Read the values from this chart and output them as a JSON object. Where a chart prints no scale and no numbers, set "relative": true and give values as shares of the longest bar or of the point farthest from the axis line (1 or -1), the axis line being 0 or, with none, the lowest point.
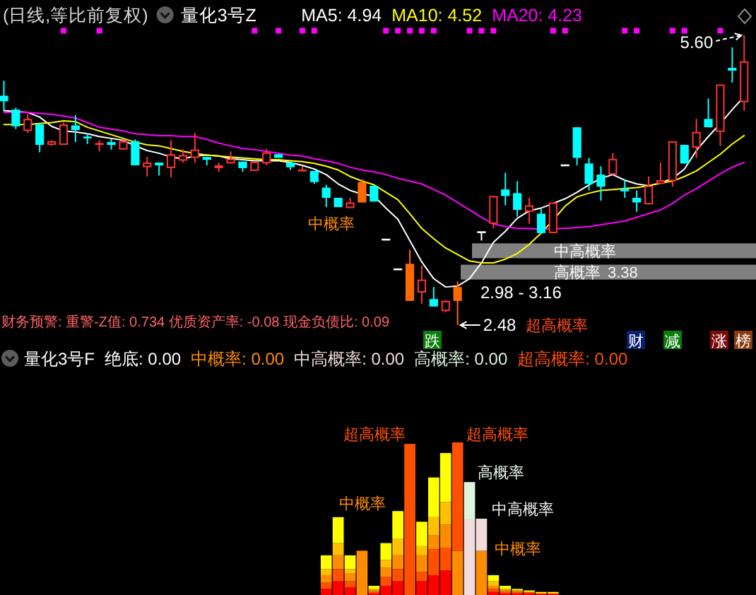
{
  "chart_data": [
    {
      "type": "candlestick",
      "title": "(日线,等比前复权)",
      "subtitle": "量化3号Z",
      "categories": [
        null,
        null,
        null,
        null,
        null,
        null,
        null,
        null,
        null,
        null,
        null,
        null,
        null,
        null,
        null,
        null,
        null,
        null,
        null,
        null,
        null,
        null,
        null,
        null,
        null,
        null,
        null,
        null,
        null,
        null,
        null,
        null,
        null,
        null,
        null,
        null,
        null,
        null,
        null,
        null,
        null,
        null,
        null,
        null,
        null,
        null,
        null,
        null,
        null,
        null,
        null,
        null,
        null,
        null,
        null,
        null,
        null,
        null,
        null,
        null,
        null,
        null,
        null
      ],
      "ohlc": [
        [
          4.95,
          5.11,
          4.79,
          4.89
        ],
        [
          4.8,
          4.82,
          4.59,
          4.62
        ],
        [
          4.57,
          4.75,
          4.55,
          4.7
        ],
        [
          4.64,
          4.66,
          4.34,
          4.42
        ],
        [
          4.42,
          4.47,
          4.41,
          4.46
        ],
        [
          4.42,
          4.66,
          4.42,
          4.64
        ],
        [
          4.63,
          4.74,
          4.45,
          4.58
        ],
        [
          4.51,
          4.55,
          4.43,
          4.49
        ],
        [
          4.42,
          4.47,
          4.35,
          4.44
        ],
        [
          4.45,
          4.48,
          4.37,
          4.42
        ],
        [
          4.37,
          4.48,
          4.37,
          4.46
        ],
        [
          4.46,
          4.48,
          4.2,
          4.2
        ],
        [
          4.18,
          4.29,
          4.08,
          4.23
        ],
        [
          4.23,
          4.23,
          4.09,
          4.2
        ],
        [
          4.17,
          4.47,
          4.07,
          4.32
        ],
        [
          4.25,
          4.37,
          4.23,
          4.31
        ],
        [
          4.28,
          4.55,
          4.23,
          4.37
        ],
        [
          4.29,
          4.29,
          4.2,
          4.26
        ],
        [
          4.17,
          4.23,
          4.13,
          4.2
        ],
        [
          4.22,
          4.35,
          4.22,
          4.27
        ],
        [
          4.24,
          4.24,
          4.13,
          4.17
        ],
        [
          4.14,
          4.24,
          4.14,
          4.24
        ],
        [
          4.22,
          4.38,
          4.2,
          4.34
        ],
        [
          4.32,
          4.32,
          4.28,
          4.28
        ],
        [
          4.23,
          4.23,
          4.15,
          4.18
        ],
        [
          4.14,
          4.19,
          4.14,
          4.15
        ],
        [
          4.14,
          4.14,
          4.0,
          4.02
        ],
        [
          3.96,
          3.99,
          3.75,
          3.85
        ],
        [
          3.85,
          3.85,
          3.75,
          3.75
        ],
        [
          3.74,
          3.85,
          3.74,
          3.8
        ],
        [
          4.02,
          4.05,
          3.8,
          3.8
        ],
        [
          3.98,
          3.98,
          3.81,
          3.81
        ],
        [
          3.4,
          3.4,
          3.4,
          3.4
        ],
        [
          3.08,
          3.08,
          3.08,
          3.08
        ],
        [
          3.14,
          3.29,
          2.74,
          2.74
        ],
        [
          2.83,
          3.12,
          2.71,
          2.97
        ],
        [
          2.76,
          2.89,
          2.68,
          2.68
        ],
        [
          2.63,
          2.75,
          2.62,
          2.74
        ],
        [
          2.89,
          2.95,
          2.48,
          2.74
        ],
        null,
        [
          3.48,
          3.48,
          3.39,
          3.48
        ],
        [
          3.57,
          3.87,
          3.52,
          3.87
        ],
        [
          3.94,
          4.12,
          3.77,
          3.87
        ],
        [
          3.9,
          4.03,
          3.65,
          3.72
        ],
        [
          3.7,
          3.85,
          3.57,
          3.77
        ],
        [
          3.68,
          3.73,
          3.46,
          3.47
        ],
        [
          3.47,
          3.8,
          3.47,
          3.8
        ],
        [
          4.2,
          4.2,
          4.2,
          4.2
        ],
        [
          4.61,
          4.61,
          4.2,
          4.28
        ],
        [
          4.22,
          4.28,
          3.93,
          4.0
        ],
        [
          4.1,
          4.19,
          3.82,
          3.97
        ],
        [
          4.1,
          4.33,
          4.1,
          4.27
        ],
        [
          3.95,
          4.05,
          3.85,
          3.92
        ],
        [
          3.85,
          3.93,
          3.7,
          3.8
        ],
        [
          3.78,
          4.08,
          3.78,
          3.98
        ],
        [
          4.0,
          4.23,
          4.0,
          4.04
        ],
        [
          4.03,
          4.46,
          3.97,
          4.46
        ],
        [
          4.42,
          4.42,
          4.22,
          4.22
        ],
        [
          4.39,
          4.7,
          4.28,
          4.56
        ],
        [
          4.7,
          4.92,
          4.61,
          4.61
        ],
        [
          4.56,
          5.07,
          4.41,
          5.07
        ],
        [
          5.25,
          5.47,
          5.09,
          5.22
        ],
        [
          4.88,
          5.6,
          4.79,
          5.32
        ]
      ],
      "colors": [
        "#00ffff",
        "#00ffff",
        "#ff3232",
        "#00ffff",
        "#ff3232",
        "#ff3232",
        "#00ffff",
        "#00ffff",
        "#ff3232",
        "#00ffff",
        "#ff3232",
        "#00ffff",
        "#ff3232",
        "#00ffff",
        "#ff3232",
        "#ff3232",
        "#ff3232",
        "#00ffff",
        "#ff3232",
        "#ff3232",
        "#00ffff",
        "#ff3232",
        "#ff3232",
        "#00ffff",
        "#00ffff",
        "#ff3232",
        "#00ffff",
        "#00ffff",
        "#00ffff",
        "#ff3232",
        "#ff6a00",
        "#00ffff",
        "#ffffff",
        "#ffffff",
        "#ff6a00",
        "#ff3232",
        "#00ffff",
        "#ff3232",
        "#ff6a00",
        null,
        "#ffffff",
        "#ff3232",
        "#00ffff",
        "#00ffff",
        "#ff3232",
        "#00ffff",
        "#ff3232",
        "#ffffff",
        "#00ffff",
        "#00ffff",
        "#00ffff",
        "#ff3232",
        "#00ffff",
        "#00ffff",
        "#ff3232",
        "#ff3232",
        "#ff3232",
        "#00ffff",
        "#ff3232",
        "#00ffff",
        "#ff3232",
        "#00ffff",
        "#ff3232"
      ],
      "series": [
        {
          "name": "MA5: 4.94",
          "type": "line",
          "color": "#ffffff",
          "values": [
            4.79,
            4.78,
            4.77,
            4.72,
            4.62,
            4.57,
            4.56,
            4.54,
            4.51,
            4.49,
            4.47,
            4.41,
            4.36,
            4.33,
            4.29,
            4.27,
            4.3,
            4.31,
            4.3,
            4.27,
            4.26,
            4.25,
            4.25,
            4.25,
            4.23,
            4.2,
            4.16,
            4.1,
            4.0,
            3.93,
            3.89,
            3.87,
            3.74,
            3.62,
            3.39,
            3.16,
            2.98,
            2.89,
            2.9,
            2.98,
            3.15,
            3.37,
            3.49,
            3.63,
            3.71,
            3.74,
            3.79,
            3.84,
            3.91,
            3.99,
            4.06,
            4.1,
            4.04,
            4.0,
            3.98,
            4.01,
            4.06,
            4.16,
            4.36,
            4.51,
            4.65,
            4.8,
            4.94
          ]
        },
        {
          "name": "MA10: 4.52",
          "type": "line",
          "color": "#ffff00",
          "values": [
            4.64,
            4.64,
            4.64,
            4.65,
            4.66,
            4.68,
            4.67,
            4.61,
            4.57,
            4.53,
            4.49,
            4.45,
            4.42,
            4.41,
            4.38,
            4.35,
            4.33,
            4.31,
            4.3,
            4.29,
            4.28,
            4.27,
            4.26,
            4.26,
            4.25,
            4.24,
            4.22,
            4.19,
            4.15,
            4.08,
            4.03,
            3.99,
            3.91,
            3.83,
            3.68,
            3.52,
            3.41,
            3.31,
            3.24,
            3.17,
            3.15,
            3.15,
            3.19,
            3.25,
            3.35,
            3.47,
            3.61,
            3.76,
            3.86,
            3.9,
            3.93,
            3.94,
            3.95,
            3.96,
            3.98,
            4.01,
            4.03,
            4.08,
            4.14,
            4.23,
            4.32,
            4.43,
            4.52
          ]
        },
        {
          "name": "MA20: 4.23",
          "type": "line",
          "color": "#ff00ff",
          "values": [
            4.77,
            4.77,
            4.77,
            4.76,
            4.75,
            4.73,
            4.71,
            4.66,
            4.61,
            4.59,
            4.57,
            4.54,
            4.53,
            4.52,
            4.52,
            4.51,
            4.51,
            4.48,
            4.44,
            4.41,
            4.38,
            4.37,
            4.35,
            4.33,
            4.31,
            4.3,
            4.27,
            4.25,
            4.22,
            4.18,
            4.15,
            4.13,
            4.1,
            4.06,
            4.03,
            4.0,
            3.94,
            3.88,
            3.8,
            3.72,
            3.64,
            3.57,
            3.54,
            3.52,
            3.52,
            3.51,
            3.52,
            3.52,
            3.53,
            3.54,
            3.56,
            3.58,
            3.6,
            3.64,
            3.68,
            3.72,
            3.79,
            3.88,
            3.95,
            4.03,
            4.11,
            4.18,
            4.23
          ]
        },
        {
          "type": "scatter",
          "marker": "square",
          "color": "#ff00ff",
          "values": [
            null,
            null,
            null,
            null,
            null,
            5.65,
            null,
            null,
            5.65,
            null,
            null,
            null,
            null,
            null,
            null,
            null,
            null,
            null,
            null,
            null,
            null,
            5.65,
            null,
            5.65,
            null,
            5.65,
            5.65,
            null,
            null,
            null,
            null,
            null,
            5.65,
            5.65,
            5.65,
            5.65,
            5.65,
            null,
            null,
            5.65,
            5.65,
            5.65,
            null,
            null,
            null,
            null,
            5.65,
            5.65,
            null,
            null,
            null,
            null,
            5.65,
            5.65,
            null,
            null,
            5.65,
            5.65,
            null,
            null,
            5.65,
            null,
            null
          ]
        }
      ],
      "legend": "top right",
      "bands": [
        {
          "axis": "y",
          "from": 3.2,
          "to": 3.36,
          "label": "中高概率",
          "color": "#808080"
        },
        {
          "axis": "y",
          "from": 2.97,
          "to": 3.13,
          "label": "高概率",
          "color": "#808080"
        }
      ],
      "annotations": [
        "中概率",
        "超高概率",
        "2.98 - 3.16",
        "5.60",
        "2.48",
        "财务预警: 重警-Z值: 0.734 优质资产率: -0.08 现金负债比: 0.09",
        "跌",
        "财",
        "减",
        "涨",
        "榜",
        "3.38"
      ]
    },
    {
      "type": "bar",
      "title": "量化3号F",
      "stacked": true,
      "relative": true,
      "categories": [
        null,
        null,
        null,
        null,
        null,
        null,
        null,
        null,
        null,
        null,
        null,
        null,
        null,
        null,
        null,
        null,
        null,
        null,
        null,
        null,
        null,
        null,
        null,
        null,
        null,
        null,
        null,
        null,
        null,
        null,
        null,
        null,
        null,
        null,
        null,
        null,
        null,
        null,
        null,
        null,
        null,
        null,
        null,
        null,
        null,
        null,
        null,
        null,
        null,
        null,
        null,
        null,
        null,
        null,
        null,
        null,
        null,
        null,
        null,
        null,
        null,
        null,
        null
      ],
      "series": [
        {
          "color": "#ff0000",
          "values": [
            null,
            null,
            null,
            null,
            null,
            null,
            null,
            null,
            null,
            null,
            null,
            null,
            null,
            null,
            null,
            null,
            null,
            null,
            null,
            null,
            null,
            null,
            null,
            null,
            null,
            null,
            null,
            0.04,
            0.09,
            0.05,
            null,
            0.01,
            0.06,
            0.09,
            null,
            0.09,
            0.13,
            0.16,
            null,
            null,
            null,
            0.02,
            0.01,
            0.01,
            0.01,
            0.01,
            0.01,
            null,
            null,
            null,
            null,
            null,
            null,
            null,
            null,
            null,
            null,
            null,
            null,
            null,
            null,
            null,
            null
          ]
        },
        {
          "color": "#ff5000",
          "values": [
            null,
            null,
            null,
            null,
            null,
            null,
            null,
            null,
            null,
            null,
            null,
            null,
            null,
            null,
            null,
            null,
            null,
            null,
            null,
            null,
            null,
            null,
            null,
            null,
            null,
            null,
            null,
            0.04,
            0.08,
            0.04,
            null,
            0.01,
            0.06,
            0.08,
            null,
            0.06,
            0.17,
            0.15,
            null,
            null,
            null,
            0.02,
            0.01,
            0.01,
            0.01,
            null,
            null,
            null,
            null,
            null,
            null,
            null,
            null,
            null,
            null,
            null,
            null,
            null,
            null,
            null,
            null,
            null,
            null
          ]
        },
        {
          "color": "#ff8c00",
          "values": [
            null,
            null,
            null,
            null,
            null,
            null,
            null,
            null,
            null,
            null,
            null,
            null,
            null,
            null,
            null,
            null,
            null,
            null,
            null,
            null,
            null,
            null,
            null,
            null,
            null,
            null,
            null,
            0.05,
            0.09,
            0.05,
            null,
            0.01,
            0.06,
            0.09,
            null,
            0.11,
            0.09,
            0.15,
            null,
            null,
            null,
            0.02,
            0.01,
            0.01,
            null,
            null,
            null,
            null,
            null,
            null,
            null,
            null,
            null,
            null,
            null,
            null,
            null,
            null,
            null,
            null,
            null,
            null,
            null
          ]
        },
        {
          "color": "#ffc000",
          "values": [
            null,
            null,
            null,
            null,
            null,
            null,
            null,
            null,
            null,
            null,
            null,
            null,
            null,
            null,
            null,
            null,
            null,
            null,
            null,
            null,
            null,
            null,
            null,
            null,
            null,
            null,
            null,
            0.04,
            0.08,
            0.03,
            null,
            0.01,
            0.05,
            0.11,
            null,
            0.06,
            0.12,
            0.15,
            null,
            null,
            null,
            0.03,
            0.01,
            null,
            null,
            null,
            null,
            null,
            null,
            null,
            null,
            null,
            null,
            null,
            null,
            null,
            null,
            null,
            null,
            null,
            null,
            null,
            null
          ]
        },
        {
          "color": "#ffff00",
          "values": [
            null,
            null,
            null,
            null,
            null,
            null,
            null,
            null,
            null,
            null,
            null,
            null,
            null,
            null,
            null,
            null,
            null,
            null,
            null,
            null,
            null,
            null,
            null,
            null,
            null,
            null,
            null,
            0.09,
            0.17,
            0.09,
            null,
            0.02,
            0.11,
            0.18,
            null,
            0.16,
            0.26,
            0.32,
            null,
            null,
            null,
            0.04,
            0.02,
            0.01,
            0.01,
            0.01,
            0.01,
            null,
            null,
            null,
            null,
            null,
            null,
            null,
            null,
            null,
            null,
            null,
            null,
            null,
            null,
            null,
            null
          ]
        },
        {
          "name": "中概率: 0.00",
          "color": "#ff8c00",
          "values": [
            null,
            null,
            null,
            null,
            null,
            null,
            null,
            null,
            null,
            null,
            null,
            null,
            null,
            null,
            null,
            null,
            null,
            null,
            null,
            null,
            null,
            null,
            null,
            null,
            null,
            null,
            null,
            null,
            null,
            null,
            0.29,
            null,
            null,
            null,
            null,
            null,
            null,
            null,
            0.29,
            null,
            0.29,
            null,
            null,
            null,
            null,
            null,
            null,
            null,
            null,
            null,
            null,
            null,
            null,
            null,
            null,
            null,
            null,
            null,
            null,
            null,
            null,
            null,
            null
          ]
        },
        {
          "name": "中高概率: 0.00",
          "color": "#f0dcdc",
          "values": [
            null,
            null,
            null,
            null,
            null,
            null,
            null,
            null,
            null,
            null,
            null,
            null,
            null,
            null,
            null,
            null,
            null,
            null,
            null,
            null,
            null,
            null,
            null,
            null,
            null,
            null,
            null,
            null,
            null,
            null,
            null,
            null,
            null,
            null,
            null,
            null,
            null,
            null,
            null,
            0.5,
            0.21,
            null,
            null,
            null,
            null,
            null,
            null,
            null,
            null,
            null,
            null,
            null,
            null,
            null,
            null,
            null,
            null,
            null,
            null,
            null,
            null,
            null,
            null
          ]
        },
        {
          "name": "高概率: 0.00",
          "color": "#dcf5dc",
          "values": [
            null,
            null,
            null,
            null,
            null,
            null,
            null,
            null,
            null,
            null,
            null,
            null,
            null,
            null,
            null,
            null,
            null,
            null,
            null,
            null,
            null,
            null,
            null,
            null,
            null,
            null,
            null,
            null,
            null,
            null,
            null,
            null,
            null,
            null,
            null,
            null,
            null,
            null,
            null,
            0.24,
            null,
            null,
            null,
            null,
            null,
            null,
            null,
            null,
            null,
            null,
            null,
            null,
            null,
            null,
            null,
            null,
            null,
            null,
            null,
            null,
            null,
            null,
            null
          ]
        },
        {
          "name": "超高概率: 0.00",
          "color": "#ff5000",
          "values": [
            null,
            null,
            null,
            null,
            null,
            null,
            null,
            null,
            null,
            null,
            null,
            null,
            null,
            null,
            null,
            null,
            null,
            null,
            null,
            null,
            null,
            null,
            null,
            null,
            null,
            null,
            null,
            null,
            null,
            null,
            null,
            null,
            null,
            null,
            0.99,
            null,
            null,
            null,
            0.71,
            null,
            null,
            null,
            null,
            null,
            null,
            null,
            null,
            null,
            null,
            null,
            null,
            null,
            null,
            null,
            null,
            null,
            null,
            null,
            null,
            null,
            null,
            null,
            null
          ]
        }
      ],
      "legend": "top left",
      "annotations": [
        "绝底: 0.00",
        "超高概率",
        "超高概率",
        "高概率",
        "中高概率",
        "中概率",
        "中概率"
      ]
    }
  ]
}
